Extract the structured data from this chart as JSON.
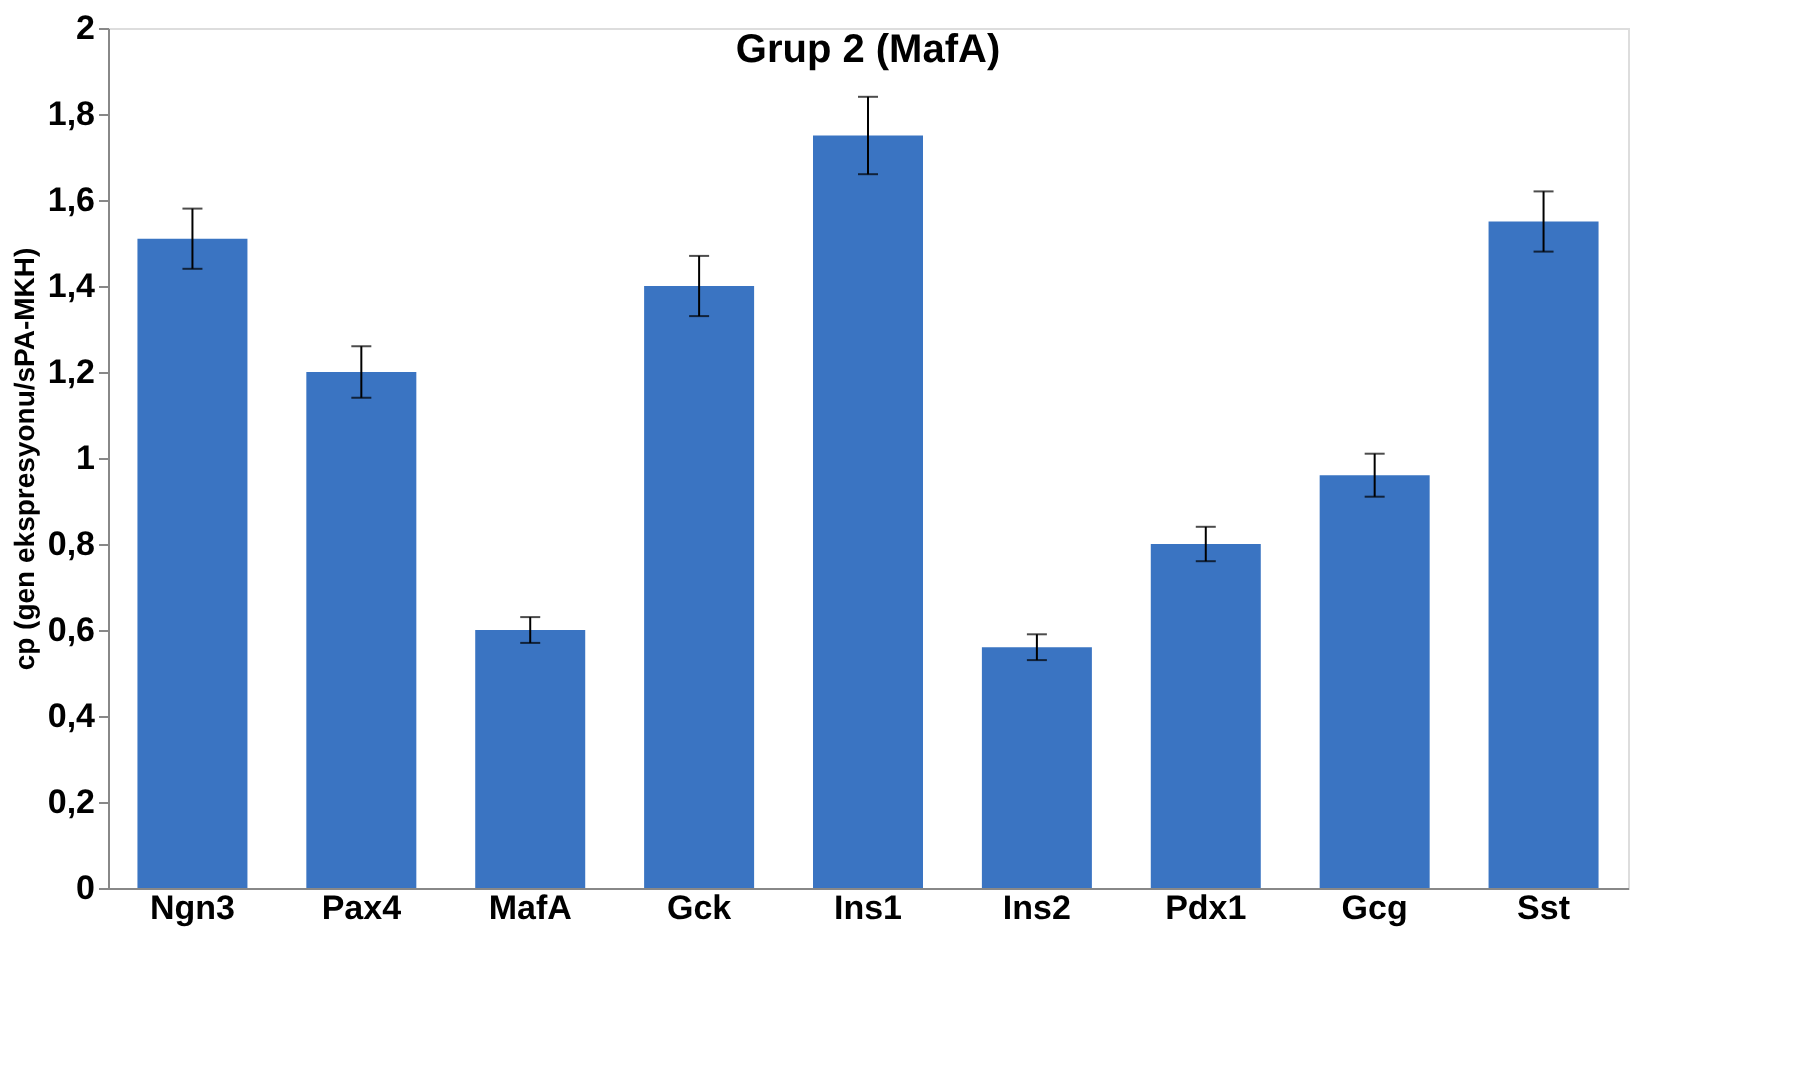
{
  "chart_data": {
    "type": "bar",
    "title": "Grup 2 (MafA)",
    "ylabel": "cp (gen ekspresyonu/sPA-MKH)",
    "categories": [
      "Ngn3",
      "Pax4",
      "MafA",
      "Gck",
      "Ins1",
      "Ins2",
      "Pdx1",
      "Gcg",
      "Sst"
    ],
    "values": [
      1.51,
      1.2,
      0.6,
      1.4,
      1.75,
      0.56,
      0.8,
      0.96,
      1.55
    ],
    "errors": [
      0.07,
      0.06,
      0.03,
      0.07,
      0.09,
      0.03,
      0.04,
      0.05,
      0.07
    ],
    "color": "#3a74c2",
    "ylim": [
      0,
      2
    ],
    "yticks": [
      0,
      {
        "value": 0.2,
        "label": "0,2"
      },
      {
        "value": 0.4,
        "label": "0,4"
      },
      {
        "value": 0.6,
        "label": "0,6"
      },
      {
        "value": 0.8,
        "label": "0,8"
      },
      1,
      {
        "value": 1.2,
        "label": "1,2"
      },
      {
        "value": 1.4,
        "label": "1,4"
      },
      {
        "value": 1.6,
        "label": "1,6"
      },
      {
        "value": 1.8,
        "label": "1,8"
      },
      2
    ],
    "grid": false
  }
}
